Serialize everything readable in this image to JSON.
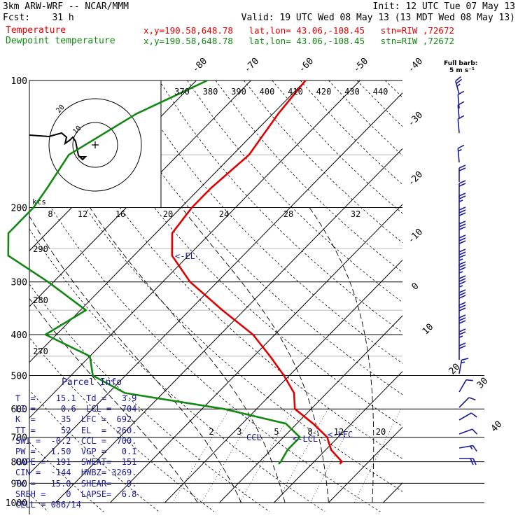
{
  "header": {
    "left_line1": "3km ARW-WRF -- NCAR/MMM",
    "right_line1": "Init: 12 UTC Tue 07 May 13",
    "left_line2": "Fcst:    31 h",
    "right_line2": "Valid: 19 UTC Wed 08 May 13 (13 MDT Wed 08 May 13)",
    "temp_label": "Temperature",
    "dew_label": "Dewpoint temperature",
    "temp_info": "x,y=190.58,648.78   lat,lon= 43.06,-108.45   stn=RIW ,72672",
    "dew_info": "x,y=190.58,648.78   lat,lon= 43.06,-108.45   stn=RIW ,72672",
    "temp_color": "#e00000",
    "dew_color": "#118811"
  },
  "barb_legend": {
    "line1": "Full barb:",
    "line2": "5 m s⁻¹"
  },
  "chart_data": {
    "type": "line",
    "chart_kind": "skew-T log-P sounding",
    "pressure_ticks": [
      "100",
      "200",
      "300",
      "400",
      "500",
      "600",
      "700",
      "800",
      "900",
      "1000"
    ],
    "pressure_values": [
      100,
      200,
      300,
      400,
      500,
      600,
      700,
      800,
      900,
      1000
    ],
    "skewed_temp_labels": [
      "-80",
      "-70",
      "-60",
      "-50",
      "-40",
      "-30",
      "-20",
      "-10",
      "0",
      "10",
      "20",
      "30",
      "40"
    ],
    "theta_labels": [
      "370",
      "380",
      "390",
      "400",
      "410",
      "420",
      "430",
      "440"
    ],
    "theta_left_labels": [
      "290",
      "280",
      "270"
    ],
    "mixing_ratio_labels_upper": [
      "8",
      "12",
      "16",
      "20",
      "24",
      "28",
      "32"
    ],
    "mixing_ratio_labels_lower": [
      "2",
      "3",
      "5",
      "8",
      "12",
      "20"
    ],
    "hodograph": {
      "units_label": "kts",
      "ring_labels": [
        "10",
        "20"
      ]
    },
    "markers": {
      "el": "<-EL",
      "ccl": "CCL",
      "lcl": "<-LCL",
      "lfc": "<-LFC"
    },
    "series": [
      {
        "name": "Temperature",
        "color": "#e00000",
        "points": [
          [
            100,
            -60
          ],
          [
            120,
            -59
          ],
          [
            150,
            -57
          ],
          [
            180,
            -58
          ],
          [
            200,
            -58
          ],
          [
            230,
            -57
          ],
          [
            260,
            -53
          ],
          [
            300,
            -45
          ],
          [
            350,
            -34
          ],
          [
            400,
            -24
          ],
          [
            450,
            -17
          ],
          [
            500,
            -11
          ],
          [
            550,
            -6
          ],
          [
            600,
            -3
          ],
          [
            650,
            3
          ],
          [
            700,
            8
          ],
          [
            750,
            11
          ],
          [
            800,
            15.1
          ],
          [
            810,
            15.1
          ]
        ]
      },
      {
        "name": "Dewpoint temperature",
        "color": "#118811",
        "points": [
          [
            100,
            -78
          ],
          [
            120,
            -85
          ],
          [
            150,
            -90
          ],
          [
            180,
            -88
          ],
          [
            200,
            -87
          ],
          [
            230,
            -87
          ],
          [
            260,
            -83
          ],
          [
            300,
            -71
          ],
          [
            350,
            -59
          ],
          [
            400,
            -62
          ],
          [
            450,
            -50
          ],
          [
            500,
            -46
          ],
          [
            550,
            -37
          ],
          [
            600,
            -16
          ],
          [
            650,
            -2
          ],
          [
            700,
            3
          ],
          [
            750,
            3
          ],
          [
            800,
            3.9
          ],
          [
            810,
            3.9
          ]
        ]
      }
    ]
  },
  "parcel_info": {
    "title": "Parcel Info",
    "lines": [
      "T  =    15.1  Td =   3.9",
      "LI =    -0.6  LCL =  704.",
      "K  =     35  LFC =  692.",
      "TT =     52  EL  =  260.",
      "SWI =  -0.2  CCL =  700.",
      "PW =   1.50  VGP =   0.1",
      "CAPE =  191  SWEAT=  151",
      "CIN =  -144  HWBZ= 3269.",
      "Tc =   15.0  SHEAR=   9.",
      "SREH =    0  LAPSE=  6.8",
      "CELL = 086/14"
    ]
  }
}
